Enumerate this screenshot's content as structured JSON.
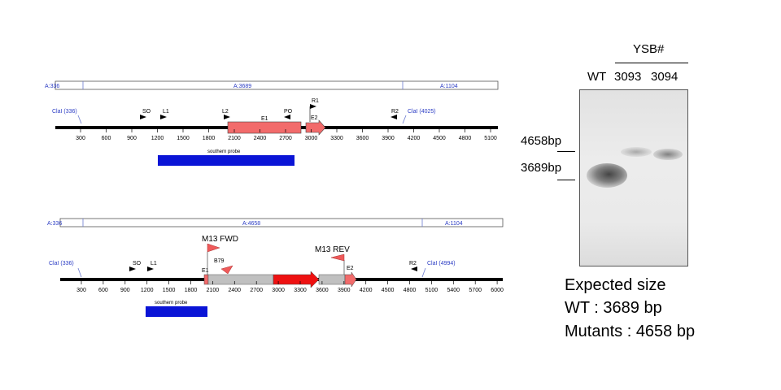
{
  "wildtype_map": {
    "segments": [
      "A:336",
      "A:3689",
      "A:1104"
    ],
    "clal_left": "ClaI (336)",
    "clal_right": "ClaI (4025)",
    "primers": {
      "s0": "SO",
      "l1": "L1",
      "l2": "L2",
      "p0": "PO",
      "r1": "R1",
      "r2": "R2"
    },
    "exon1": "E1",
    "exon2": "E2",
    "probe": "southern probe",
    "ticks": [
      "300",
      "600",
      "900",
      "1200",
      "1500",
      "1800",
      "2100",
      "2400",
      "2700",
      "3000",
      "3300",
      "3600",
      "3900",
      "4200",
      "4500",
      "4800",
      "5100"
    ]
  },
  "mutant_map": {
    "segments": [
      "A:336",
      "A:4658",
      "A:1104"
    ],
    "clal_left": "ClaI (336)",
    "clal_right": "ClaI (4994)",
    "primers": {
      "s0": "SO",
      "l1": "L1",
      "b79": "B79",
      "r2": "R2",
      "m13fwd": "M13 FWD",
      "m13rev": "M13 REV"
    },
    "exon1": "E1",
    "exon2": "E2",
    "probe": "southern probe",
    "ticks": [
      "300",
      "600",
      "900",
      "1200",
      "1500",
      "1800",
      "2100",
      "2400",
      "2700",
      "3000",
      "3300",
      "3600",
      "3900",
      "4200",
      "4500",
      "4800",
      "5100",
      "5400",
      "5700",
      "6000"
    ]
  },
  "blot": {
    "group_label": "YSB#",
    "lanes": [
      "WT",
      "3093",
      "3094"
    ],
    "marker_upper": "4658bp",
    "marker_lower": "3689bp"
  },
  "expected": {
    "title": "Expected size",
    "wt": "WT : 3689 bp",
    "mutants": "Mutants : 4658 bp"
  },
  "colors": {
    "exon": "#f26b6b",
    "cassette": "#c0c0c0",
    "marker_gene": "#ee1111",
    "probe": "#0a14d6",
    "segment_text": "#2b3cc4",
    "primer_red": "#ef5a5a"
  }
}
